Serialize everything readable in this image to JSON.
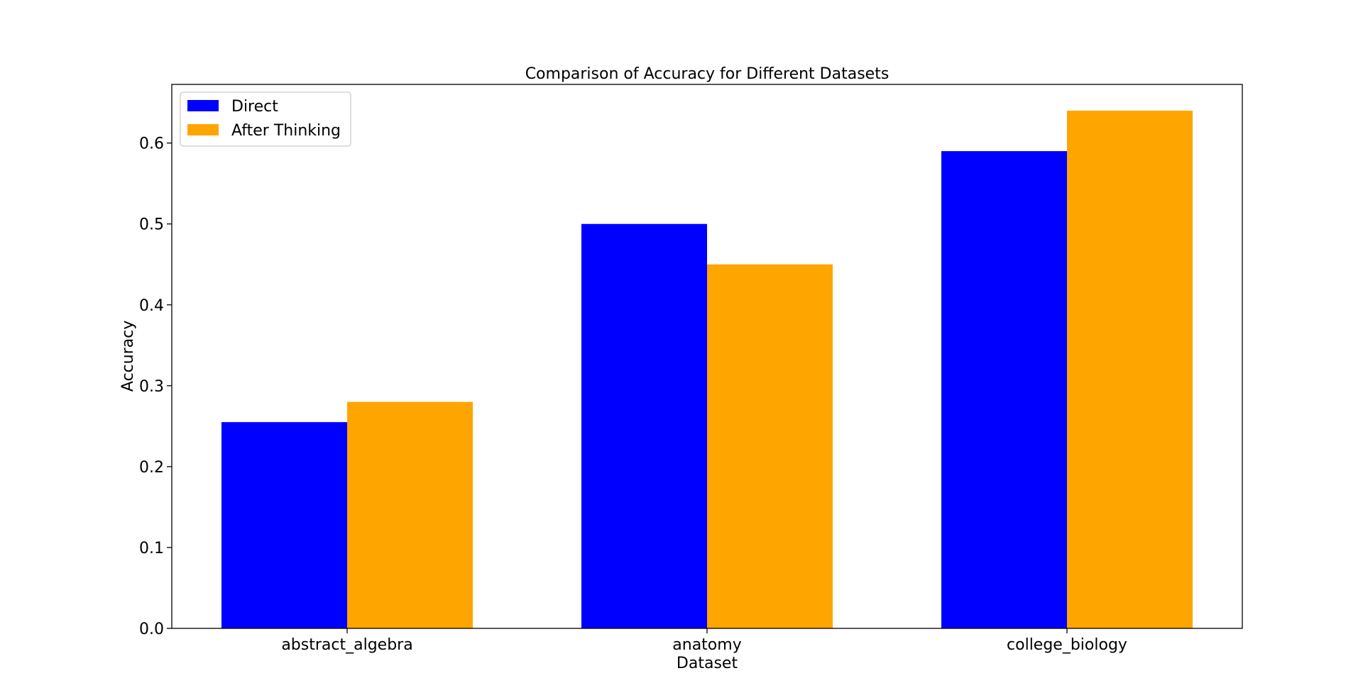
{
  "chart_data": {
    "type": "bar",
    "title": "Comparison of Accuracy for Different Datasets",
    "xlabel": "Dataset",
    "ylabel": "Accuracy",
    "categories": [
      "abstract_algebra",
      "anatomy",
      "college_biology"
    ],
    "series": [
      {
        "name": "Direct",
        "color": "#0000ff",
        "values": [
          0.255,
          0.5,
          0.59
        ]
      },
      {
        "name": "After Thinking",
        "color": "#ffa500",
        "values": [
          0.28,
          0.45,
          0.64
        ]
      }
    ],
    "ylim": [
      0,
      0.6725
    ],
    "yticks": [
      "0.0",
      "0.1",
      "0.2",
      "0.3",
      "0.4",
      "0.5",
      "0.6"
    ],
    "grid": false,
    "legend_position": "top-left"
  }
}
